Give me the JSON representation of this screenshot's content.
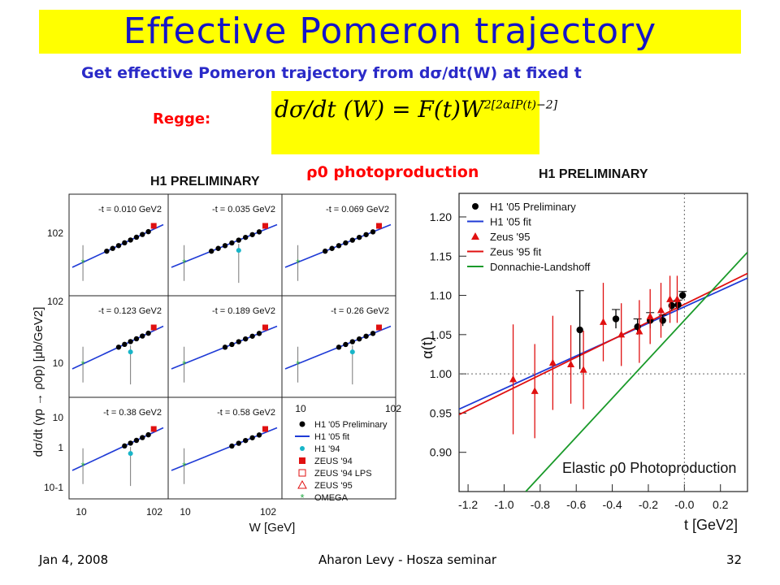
{
  "slide": {
    "title": "Effective Pomeron trajectory",
    "subtitle": "Get effective Pomeron trajectory from dσ/dt(W) at fixed t",
    "regge_label": "Regge:",
    "formula_lhs": "dσ/dt (W) = F(t)W",
    "formula_exp": "2[2αIP(t)−2]",
    "center_title": "ρ0 photoproduction"
  },
  "footer": {
    "date": "Jan 4, 2008",
    "author": "Aharon Levy - Hosza seminar",
    "page": "32"
  },
  "left_panel": {
    "header": "H1 PRELIMINARY",
    "ylabel": "dσ/dt (γp → ρ0p) [μb/GeV2]",
    "xlabel": "W [GeV]",
    "x_ticks": [
      "10",
      "102"
    ],
    "y_ticks": [
      "102",
      "10",
      "1",
      "10-1"
    ],
    "bin_labels": [
      "-t = 0.010 GeV2",
      "-t = 0.035 GeV2",
      "-t = 0.069 GeV2",
      "-t = 0.123 GeV2",
      "-t = 0.189 GeV2",
      "-t = 0.26 GeV2",
      "-t = 0.38 GeV2",
      "-t = 0.58 GeV2"
    ],
    "legend": [
      "H1 '05 Preliminary",
      "H1 '05 fit",
      "H1 '94",
      "ZEUS '94",
      "ZEUS '94 LPS",
      "ZEUS '95",
      "OMEGA"
    ]
  },
  "chart_data": {
    "type": "scatter",
    "title": "H1 PRELIMINARY",
    "annotation": "Elastic ρ0 Photoproduction",
    "xlabel": "t [GeV2]",
    "ylabel": "α(t)",
    "xlim": [
      -1.25,
      0.35
    ],
    "ylim": [
      0.85,
      1.23
    ],
    "x_ticks": [
      -1.2,
      -1.0,
      -0.8,
      -0.6,
      -0.4,
      -0.2,
      -0.0,
      0.2
    ],
    "x_tick_labels": [
      "-1.2",
      "-1.0",
      "-0.8",
      "-0.6",
      "-0.4",
      "-0.2",
      "-0.0",
      "0.2"
    ],
    "y_ticks": [
      0.9,
      0.95,
      1.0,
      1.05,
      1.1,
      1.15,
      1.2
    ],
    "y_tick_labels": [
      "0.90",
      "0.95",
      "1.00",
      "1.05",
      "1.10",
      "1.15",
      "1.20"
    ],
    "reference_lines": {
      "y": 1.0,
      "x": 0.0
    },
    "legend_position": "top-left",
    "series": [
      {
        "name": "H1 '05 Preliminary",
        "kind": "points",
        "color": "#000000",
        "marker": "circle",
        "points": [
          {
            "x": -0.58,
            "y": 1.056,
            "err": 0.05
          },
          {
            "x": -0.38,
            "y": 1.07,
            "err": 0.012
          },
          {
            "x": -0.26,
            "y": 1.06,
            "err": 0.01
          },
          {
            "x": -0.19,
            "y": 1.068,
            "err": 0.01
          },
          {
            "x": -0.12,
            "y": 1.068,
            "err": 0.007
          },
          {
            "x": -0.07,
            "y": 1.087,
            "err": 0.006
          },
          {
            "x": -0.035,
            "y": 1.088,
            "err": 0.006
          },
          {
            "x": -0.01,
            "y": 1.1,
            "err": 0.005
          }
        ]
      },
      {
        "name": "H1 '05 fit",
        "kind": "line",
        "color": "#1f3bd6",
        "x1": -1.25,
        "y1": 0.955,
        "x2": 0.35,
        "y2": 1.122
      },
      {
        "name": "Zeus '95",
        "kind": "points",
        "color": "#e01010",
        "marker": "triangle",
        "points": [
          {
            "x": -0.95,
            "y": 0.993,
            "err": 0.07
          },
          {
            "x": -0.83,
            "y": 0.978,
            "err": 0.06
          },
          {
            "x": -0.73,
            "y": 1.014,
            "err": 0.06
          },
          {
            "x": -0.63,
            "y": 1.012,
            "err": 0.05
          },
          {
            "x": -0.56,
            "y": 1.005,
            "err": 0.05
          },
          {
            "x": -0.45,
            "y": 1.066,
            "err": 0.05
          },
          {
            "x": -0.35,
            "y": 1.05,
            "err": 0.04
          },
          {
            "x": -0.25,
            "y": 1.054,
            "err": 0.04
          },
          {
            "x": -0.19,
            "y": 1.073,
            "err": 0.035
          },
          {
            "x": -0.13,
            "y": 1.081,
            "err": 0.035
          },
          {
            "x": -0.08,
            "y": 1.095,
            "err": 0.03
          },
          {
            "x": -0.04,
            "y": 1.095,
            "err": 0.03
          }
        ]
      },
      {
        "name": "Zeus '95 fit",
        "kind": "line",
        "color": "#e01010",
        "x1": -1.25,
        "y1": 0.948,
        "x2": 0.35,
        "y2": 1.128
      },
      {
        "name": "Donnachie-Landshoff",
        "kind": "line",
        "color": "#1a9a2a",
        "x1": -0.88,
        "y1": 0.85,
        "x2": 0.35,
        "y2": 1.155
      }
    ]
  }
}
